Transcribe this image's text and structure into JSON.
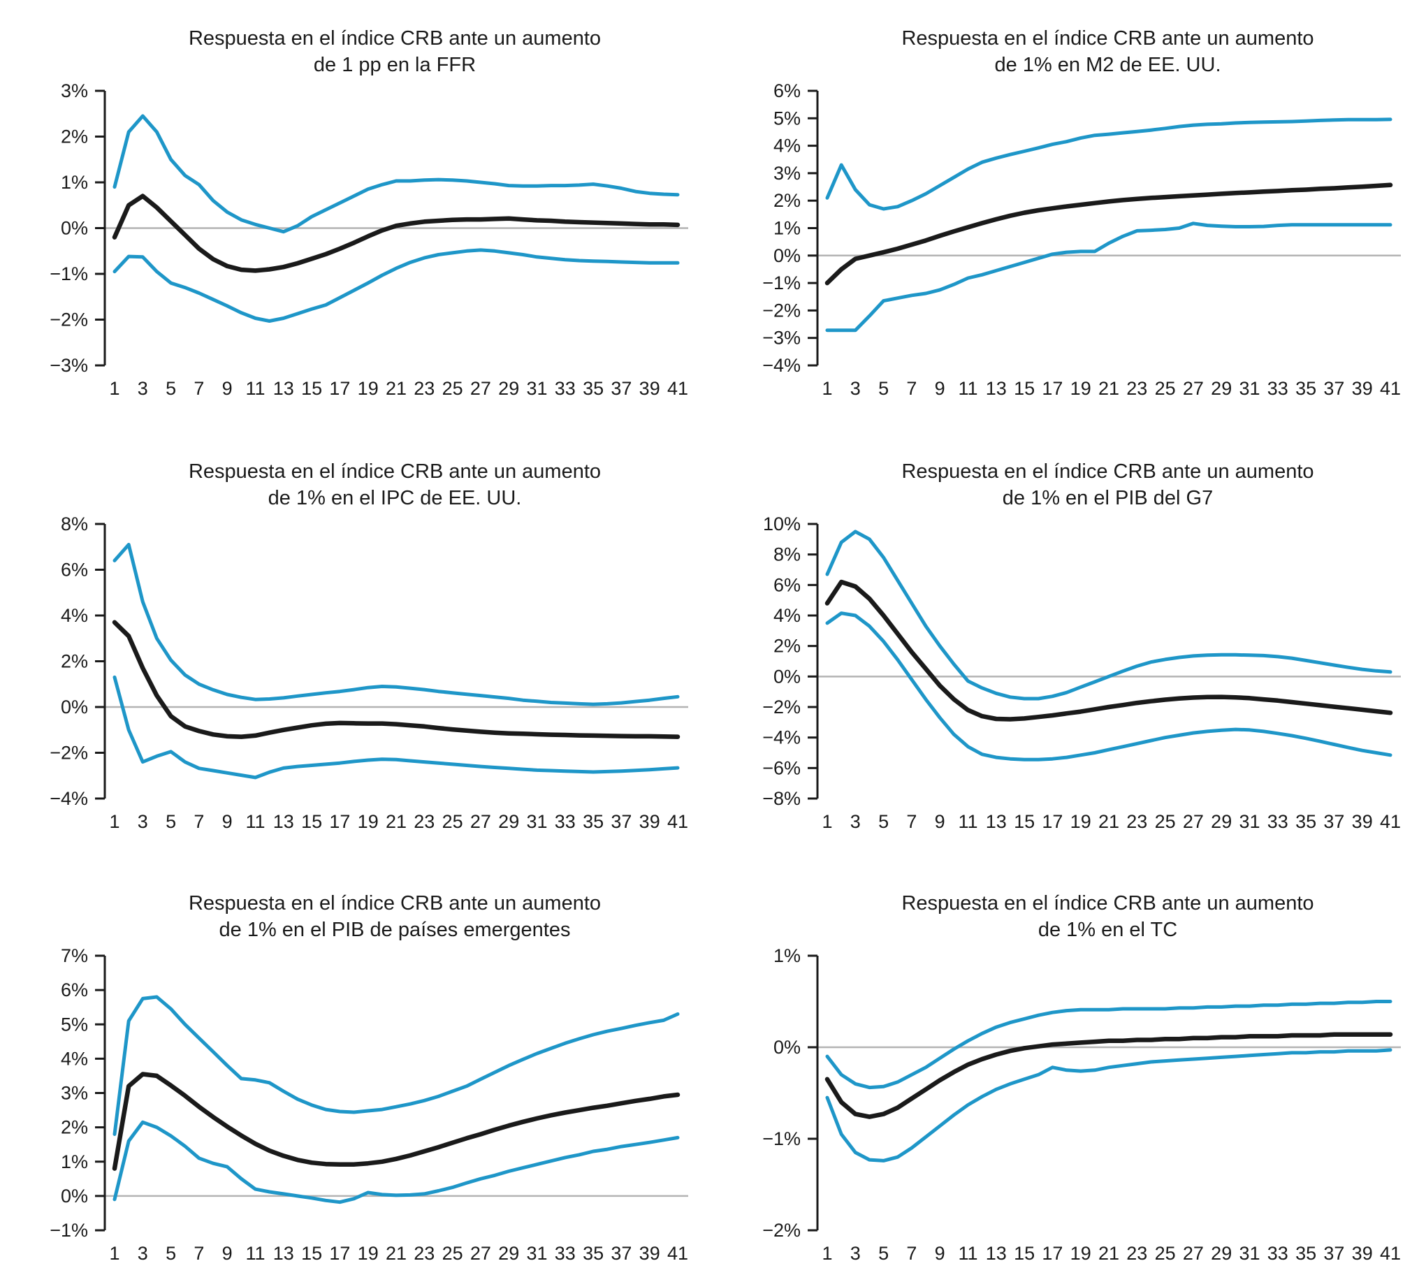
{
  "colors": {
    "band": "#1e96c8",
    "central": "#1a1a1a",
    "zero_line": "#b3b3b3",
    "axis": "#1a1a1a"
  },
  "axes": {
    "x_tick_labels": [
      "1",
      "3",
      "5",
      "7",
      "9",
      "11",
      "13",
      "15",
      "17",
      "19",
      "21",
      "23",
      "25",
      "27",
      "29",
      "31",
      "33",
      "35",
      "37",
      "39",
      "41"
    ],
    "x_range": [
      1,
      41
    ]
  },
  "chart_data": [
    {
      "type": "line",
      "title_line1": "Respuesta en el índice CRB ante un aumento",
      "title_line2": "de 1 pp en la FFR",
      "ylim": [
        -3,
        3
      ],
      "yticks": [
        3,
        2,
        1,
        0,
        -1,
        -2,
        -3
      ],
      "ytick_labels": [
        "3%",
        "2%",
        "1%",
        "0%",
        "−1%",
        "−2%",
        "−3%"
      ],
      "grid": "zero-line-only",
      "legend": "none",
      "series": [
        {
          "name": "banda superior",
          "role": "band",
          "values": [
            0.9,
            2.1,
            2.45,
            2.1,
            1.5,
            1.15,
            0.95,
            0.6,
            0.35,
            0.18,
            0.08,
            0.0,
            -0.08,
            0.05,
            0.25,
            0.4,
            0.55,
            0.7,
            0.85,
            0.95,
            1.03,
            1.03,
            1.05,
            1.06,
            1.05,
            1.03,
            1.0,
            0.97,
            0.93,
            0.92,
            0.92,
            0.93,
            0.93,
            0.94,
            0.96,
            0.92,
            0.87,
            0.8,
            0.76,
            0.74,
            0.73
          ]
        },
        {
          "name": "respuesta central",
          "role": "central",
          "values": [
            -0.2,
            0.5,
            0.7,
            0.45,
            0.15,
            -0.15,
            -0.45,
            -0.68,
            -0.83,
            -0.91,
            -0.93,
            -0.9,
            -0.85,
            -0.77,
            -0.67,
            -0.57,
            -0.45,
            -0.32,
            -0.18,
            -0.05,
            0.05,
            0.1,
            0.14,
            0.16,
            0.18,
            0.19,
            0.19,
            0.2,
            0.21,
            0.19,
            0.17,
            0.16,
            0.14,
            0.13,
            0.12,
            0.11,
            0.1,
            0.09,
            0.08,
            0.08,
            0.07
          ]
        },
        {
          "name": "banda inferior",
          "role": "band",
          "values": [
            -0.95,
            -0.62,
            -0.63,
            -0.95,
            -1.2,
            -1.3,
            -1.42,
            -1.56,
            -1.7,
            -1.85,
            -1.97,
            -2.03,
            -1.97,
            -1.87,
            -1.77,
            -1.68,
            -1.52,
            -1.36,
            -1.2,
            -1.03,
            -0.88,
            -0.75,
            -0.65,
            -0.58,
            -0.54,
            -0.5,
            -0.48,
            -0.5,
            -0.54,
            -0.58,
            -0.63,
            -0.66,
            -0.69,
            -0.71,
            -0.72,
            -0.73,
            -0.74,
            -0.75,
            -0.76,
            -0.76,
            -0.76
          ]
        }
      ]
    },
    {
      "type": "line",
      "title_line1": "Respuesta en el índice CRB ante un aumento",
      "title_line2": "de 1% en M2 de EE. UU.",
      "ylim": [
        -4,
        6
      ],
      "yticks": [
        6,
        5,
        4,
        3,
        2,
        1,
        0,
        -1,
        -2,
        -3,
        -4
      ],
      "ytick_labels": [
        "6%",
        "5%",
        "4%",
        "3%",
        "2%",
        "1%",
        "0%",
        "−1%",
        "−2%",
        "−3%",
        "−4%"
      ],
      "grid": "zero-line-only",
      "legend": "none",
      "series": [
        {
          "name": "banda superior",
          "role": "band",
          "values": [
            2.1,
            3.3,
            2.4,
            1.85,
            1.7,
            1.78,
            2.0,
            2.25,
            2.55,
            2.85,
            3.15,
            3.4,
            3.55,
            3.68,
            3.8,
            3.92,
            4.05,
            4.15,
            4.28,
            4.38,
            4.42,
            4.47,
            4.52,
            4.57,
            4.63,
            4.7,
            4.75,
            4.78,
            4.8,
            4.83,
            4.85,
            4.86,
            4.87,
            4.88,
            4.9,
            4.92,
            4.94,
            4.95,
            4.95,
            4.95,
            4.96
          ]
        },
        {
          "name": "respuesta central",
          "role": "central",
          "values": [
            -1.0,
            -0.5,
            -0.12,
            0.0,
            0.12,
            0.25,
            0.4,
            0.55,
            0.72,
            0.88,
            1.03,
            1.18,
            1.32,
            1.45,
            1.56,
            1.65,
            1.72,
            1.79,
            1.85,
            1.91,
            1.97,
            2.02,
            2.06,
            2.1,
            2.13,
            2.16,
            2.19,
            2.22,
            2.25,
            2.28,
            2.3,
            2.33,
            2.35,
            2.38,
            2.4,
            2.43,
            2.45,
            2.48,
            2.51,
            2.54,
            2.57
          ]
        },
        {
          "name": "banda inferior",
          "role": "band",
          "values": [
            -2.72,
            -2.72,
            -2.72,
            -2.2,
            -1.65,
            -1.55,
            -1.45,
            -1.38,
            -1.25,
            -1.05,
            -0.82,
            -0.7,
            -0.55,
            -0.4,
            -0.25,
            -0.1,
            0.05,
            0.12,
            0.15,
            0.15,
            0.45,
            0.7,
            0.9,
            0.92,
            0.95,
            1.0,
            1.17,
            1.1,
            1.07,
            1.05,
            1.05,
            1.06,
            1.1,
            1.12,
            1.12,
            1.12,
            1.12,
            1.12,
            1.12,
            1.12,
            1.12
          ]
        }
      ]
    },
    {
      "type": "line",
      "title_line1": "Respuesta en el índice CRB ante un aumento",
      "title_line2": "de 1% en el IPC de EE. UU.",
      "ylim": [
        -4,
        8
      ],
      "yticks": [
        8,
        6,
        4,
        2,
        0,
        -2,
        -4
      ],
      "ytick_labels": [
        "8%",
        "6%",
        "4%",
        "2%",
        "0%",
        "−2%",
        "−4%"
      ],
      "grid": "zero-line-only",
      "legend": "none",
      "series": [
        {
          "name": "banda superior",
          "role": "band",
          "values": [
            6.4,
            7.1,
            4.6,
            3.0,
            2.05,
            1.4,
            1.0,
            0.75,
            0.55,
            0.42,
            0.33,
            0.35,
            0.4,
            0.48,
            0.55,
            0.62,
            0.68,
            0.76,
            0.85,
            0.9,
            0.88,
            0.82,
            0.76,
            0.68,
            0.62,
            0.56,
            0.5,
            0.44,
            0.38,
            0.3,
            0.25,
            0.2,
            0.17,
            0.14,
            0.12,
            0.14,
            0.18,
            0.24,
            0.3,
            0.38,
            0.45
          ]
        },
        {
          "name": "respuesta central",
          "role": "central",
          "values": [
            3.7,
            3.1,
            1.7,
            0.5,
            -0.4,
            -0.85,
            -1.05,
            -1.2,
            -1.28,
            -1.3,
            -1.25,
            -1.12,
            -1.0,
            -0.9,
            -0.8,
            -0.73,
            -0.7,
            -0.71,
            -0.72,
            -0.72,
            -0.75,
            -0.8,
            -0.85,
            -0.92,
            -0.98,
            -1.03,
            -1.08,
            -1.12,
            -1.15,
            -1.17,
            -1.19,
            -1.21,
            -1.22,
            -1.24,
            -1.25,
            -1.26,
            -1.27,
            -1.28,
            -1.28,
            -1.29,
            -1.3
          ]
        },
        {
          "name": "banda inferior",
          "role": "band",
          "values": [
            1.3,
            -1.0,
            -2.4,
            -2.15,
            -1.95,
            -2.4,
            -2.68,
            -2.78,
            -2.88,
            -2.98,
            -3.08,
            -2.85,
            -2.67,
            -2.6,
            -2.55,
            -2.5,
            -2.45,
            -2.38,
            -2.32,
            -2.28,
            -2.3,
            -2.35,
            -2.4,
            -2.45,
            -2.5,
            -2.55,
            -2.6,
            -2.64,
            -2.68,
            -2.72,
            -2.76,
            -2.78,
            -2.8,
            -2.82,
            -2.84,
            -2.82,
            -2.8,
            -2.77,
            -2.74,
            -2.7,
            -2.66
          ]
        }
      ]
    },
    {
      "type": "line",
      "title_line1": "Respuesta en el índice CRB ante un aumento",
      "title_line2": "de 1% en el PIB del G7",
      "ylim": [
        -8,
        10
      ],
      "yticks": [
        10,
        8,
        6,
        4,
        2,
        0,
        -2,
        -4,
        -6,
        -8
      ],
      "ytick_labels": [
        "10%",
        "8%",
        "6%",
        "4%",
        "2%",
        "0%",
        "−2%",
        "−4%",
        "−6%",
        "−8%"
      ],
      "grid": "zero-line-only",
      "legend": "none",
      "series": [
        {
          "name": "banda superior",
          "role": "band",
          "values": [
            6.7,
            8.8,
            9.5,
            9.0,
            7.8,
            6.3,
            4.8,
            3.3,
            2.0,
            0.8,
            -0.3,
            -0.75,
            -1.1,
            -1.35,
            -1.45,
            -1.45,
            -1.3,
            -1.05,
            -0.7,
            -0.35,
            0.0,
            0.35,
            0.68,
            0.95,
            1.12,
            1.25,
            1.35,
            1.4,
            1.42,
            1.42,
            1.4,
            1.37,
            1.3,
            1.2,
            1.05,
            0.9,
            0.75,
            0.6,
            0.47,
            0.37,
            0.3
          ]
        },
        {
          "name": "respuesta central",
          "role": "central",
          "values": [
            4.8,
            6.2,
            5.9,
            5.1,
            4.0,
            2.8,
            1.6,
            0.5,
            -0.6,
            -1.5,
            -2.2,
            -2.6,
            -2.78,
            -2.8,
            -2.75,
            -2.65,
            -2.55,
            -2.42,
            -2.3,
            -2.15,
            -2.0,
            -1.87,
            -1.73,
            -1.62,
            -1.52,
            -1.44,
            -1.38,
            -1.35,
            -1.34,
            -1.37,
            -1.42,
            -1.5,
            -1.58,
            -1.68,
            -1.78,
            -1.88,
            -1.98,
            -2.08,
            -2.18,
            -2.28,
            -2.38
          ]
        },
        {
          "name": "banda inferior",
          "role": "band",
          "values": [
            3.5,
            4.15,
            4.0,
            3.3,
            2.3,
            1.1,
            -0.2,
            -1.5,
            -2.7,
            -3.8,
            -4.6,
            -5.1,
            -5.3,
            -5.4,
            -5.45,
            -5.45,
            -5.4,
            -5.3,
            -5.15,
            -5.0,
            -4.8,
            -4.6,
            -4.4,
            -4.2,
            -4.0,
            -3.85,
            -3.7,
            -3.6,
            -3.52,
            -3.47,
            -3.5,
            -3.6,
            -3.73,
            -3.88,
            -4.05,
            -4.25,
            -4.45,
            -4.65,
            -4.85,
            -5.0,
            -5.15
          ]
        }
      ]
    },
    {
      "type": "line",
      "title_line1": "Respuesta en el índice CRB ante un aumento",
      "title_line2": "de 1% en el PIB de países emergentes",
      "ylim": [
        -1,
        7
      ],
      "yticks": [
        7,
        6,
        5,
        4,
        3,
        2,
        1,
        0,
        -1
      ],
      "ytick_labels": [
        "7%",
        "6%",
        "5%",
        "4%",
        "3%",
        "2%",
        "1%",
        "0%",
        "−1%"
      ],
      "grid": "zero-line-only",
      "legend": "none",
      "series": [
        {
          "name": "banda superior",
          "role": "band",
          "values": [
            1.8,
            5.1,
            5.75,
            5.8,
            5.45,
            5.0,
            4.6,
            4.2,
            3.8,
            3.42,
            3.38,
            3.3,
            3.05,
            2.82,
            2.65,
            2.52,
            2.46,
            2.44,
            2.48,
            2.52,
            2.6,
            2.68,
            2.78,
            2.9,
            3.05,
            3.2,
            3.4,
            3.6,
            3.8,
            3.98,
            4.15,
            4.3,
            4.45,
            4.58,
            4.7,
            4.8,
            4.88,
            4.97,
            5.05,
            5.12,
            5.3
          ]
        },
        {
          "name": "respuesta central",
          "role": "central",
          "values": [
            0.8,
            3.2,
            3.55,
            3.5,
            3.22,
            2.92,
            2.6,
            2.3,
            2.02,
            1.76,
            1.52,
            1.32,
            1.17,
            1.05,
            0.97,
            0.93,
            0.92,
            0.92,
            0.95,
            1.0,
            1.08,
            1.18,
            1.3,
            1.42,
            1.55,
            1.68,
            1.8,
            1.93,
            2.05,
            2.16,
            2.26,
            2.35,
            2.43,
            2.5,
            2.57,
            2.63,
            2.7,
            2.77,
            2.83,
            2.9,
            2.95
          ]
        },
        {
          "name": "banda inferior",
          "role": "band",
          "values": [
            -0.1,
            1.6,
            2.15,
            2.0,
            1.75,
            1.45,
            1.1,
            0.95,
            0.85,
            0.5,
            0.2,
            0.12,
            0.06,
            0.0,
            -0.06,
            -0.13,
            -0.18,
            -0.08,
            0.1,
            0.04,
            0.02,
            0.03,
            0.06,
            0.15,
            0.25,
            0.38,
            0.5,
            0.6,
            0.72,
            0.82,
            0.92,
            1.02,
            1.12,
            1.2,
            1.3,
            1.36,
            1.44,
            1.5,
            1.56,
            1.63,
            1.7
          ]
        }
      ]
    },
    {
      "type": "line",
      "title_line1": "Respuesta en el índice CRB ante un aumento",
      "title_line2": "de 1% en el TC",
      "ylim": [
        -2,
        1
      ],
      "yticks": [
        1,
        0,
        -1,
        -2
      ],
      "ytick_labels": [
        "1%",
        "0%",
        "−1%",
        "−2%"
      ],
      "grid": "zero-line-only",
      "legend": "none",
      "series": [
        {
          "name": "banda superior",
          "role": "band",
          "values": [
            -0.1,
            -0.3,
            -0.4,
            -0.44,
            -0.43,
            -0.38,
            -0.3,
            -0.22,
            -0.12,
            -0.02,
            0.07,
            0.15,
            0.22,
            0.27,
            0.31,
            0.35,
            0.38,
            0.4,
            0.41,
            0.41,
            0.41,
            0.42,
            0.42,
            0.42,
            0.42,
            0.43,
            0.43,
            0.44,
            0.44,
            0.45,
            0.45,
            0.46,
            0.46,
            0.47,
            0.47,
            0.48,
            0.48,
            0.49,
            0.49,
            0.5,
            0.5
          ]
        },
        {
          "name": "respuesta central",
          "role": "central",
          "values": [
            -0.35,
            -0.6,
            -0.73,
            -0.76,
            -0.73,
            -0.66,
            -0.56,
            -0.46,
            -0.36,
            -0.27,
            -0.19,
            -0.13,
            -0.08,
            -0.04,
            -0.01,
            0.01,
            0.03,
            0.04,
            0.05,
            0.06,
            0.07,
            0.07,
            0.08,
            0.08,
            0.09,
            0.09,
            0.1,
            0.1,
            0.11,
            0.11,
            0.12,
            0.12,
            0.12,
            0.13,
            0.13,
            0.13,
            0.14,
            0.14,
            0.14,
            0.14,
            0.14
          ]
        },
        {
          "name": "banda inferior",
          "role": "band",
          "values": [
            -0.55,
            -0.95,
            -1.15,
            -1.23,
            -1.24,
            -1.2,
            -1.1,
            -0.98,
            -0.86,
            -0.74,
            -0.63,
            -0.54,
            -0.46,
            -0.4,
            -0.35,
            -0.3,
            -0.22,
            -0.25,
            -0.26,
            -0.25,
            -0.22,
            -0.2,
            -0.18,
            -0.16,
            -0.15,
            -0.14,
            -0.13,
            -0.12,
            -0.11,
            -0.1,
            -0.09,
            -0.08,
            -0.07,
            -0.06,
            -0.06,
            -0.05,
            -0.05,
            -0.04,
            -0.04,
            -0.04,
            -0.03
          ]
        }
      ]
    }
  ]
}
